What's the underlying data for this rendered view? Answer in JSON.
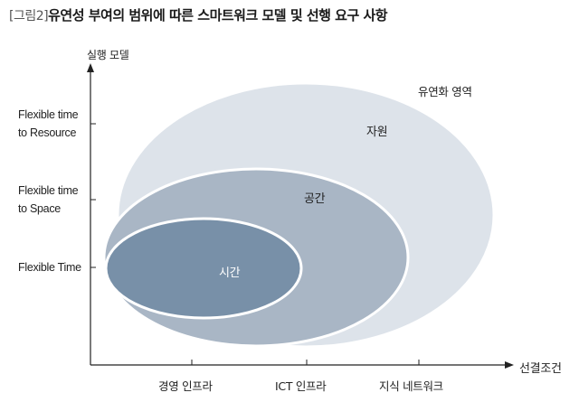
{
  "title": {
    "prefix": "[그림2]",
    "text": "유연성 부여의 범위에 따른 스마트워크 모델 및 선행 요구 사항"
  },
  "axes": {
    "y_label": "실행 모델",
    "x_label": "선결조건"
  },
  "y_levels": [
    {
      "line1": "Flexible time",
      "line2": "to Resource"
    },
    {
      "line1": "Flexible time",
      "line2": "to Space"
    },
    {
      "line1": "Flexible Time",
      "line2": ""
    }
  ],
  "x_levels": [
    "경영 인프라",
    "ICT 인프라",
    "지식 네트워크"
  ],
  "regions": {
    "outer": {
      "label": "유연화 영역",
      "color": "#e9ecef"
    },
    "resource": {
      "label": "자원",
      "color": "#dde3ea"
    },
    "space": {
      "label": "공간",
      "color": "#a9b6c5"
    },
    "time": {
      "label": "시간",
      "color": "#7890a8"
    }
  }
}
